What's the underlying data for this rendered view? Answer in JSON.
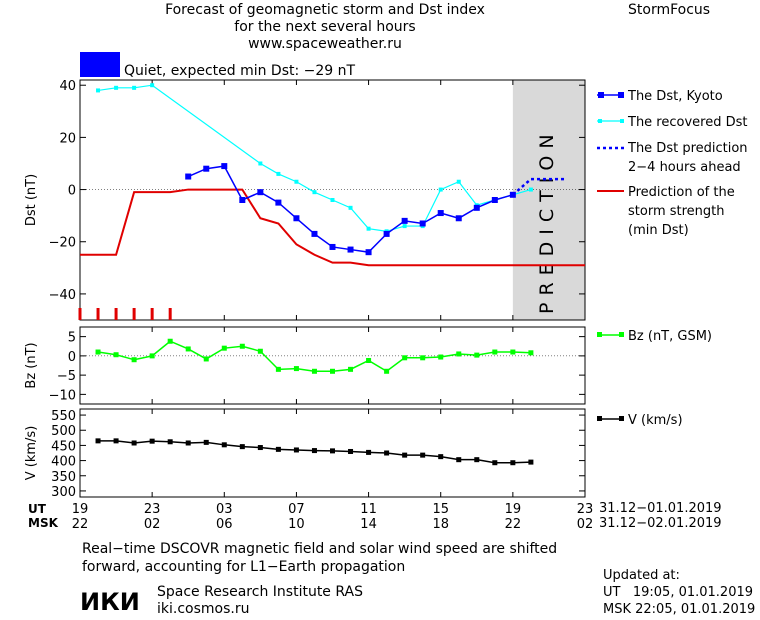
{
  "header": {
    "title_line1": "Forecast of geomagnetic storm and Dst index",
    "title_line2": "for the next several hours",
    "title_line3": "www.spaceweather.ru",
    "brand": "StormFocus"
  },
  "status": {
    "color": "#0000ff",
    "text": "Quiet, expected min Dst: −29 nT"
  },
  "prediction_label": "PREDICTION",
  "colors": {
    "dst_kyoto": "#0000ff",
    "dst_recovered": "#00ffff",
    "dst_prediction": "#0000ff",
    "storm_strength": "#e00000",
    "bz": "#00ff00",
    "v": "#000000",
    "prediction_zone": "#d9d9d9"
  },
  "time_axis": {
    "ut_label": "UT",
    "msk_label": "MSK",
    "ut_ticks": [
      "19",
      "23",
      "03",
      "07",
      "11",
      "15",
      "19",
      "23"
    ],
    "msk_ticks": [
      "22",
      "02",
      "06",
      "10",
      "14",
      "18",
      "22",
      "02"
    ],
    "ut_range": "31.12−01.01.2019",
    "msk_range": "31.12−02.01.2019"
  },
  "chart_data": [
    {
      "type": "line",
      "ylabel": "Dst (nT)",
      "ylim": [
        -50,
        42
      ],
      "xlim": [
        19,
        47
      ],
      "yticks": [
        "40",
        "20",
        "0",
        "−20",
        "−40"
      ],
      "ytick_values": [
        40,
        20,
        0,
        -20,
        -40
      ],
      "legend_placement": "right",
      "series": [
        {
          "name": "The Dst, Kyoto",
          "x": [
            25,
            26,
            27,
            28,
            29,
            30,
            31,
            32,
            33,
            34,
            35,
            36,
            37,
            38,
            39,
            40,
            41,
            42,
            43
          ],
          "values": [
            5,
            8,
            9,
            -4,
            -1,
            -5,
            -11,
            -17,
            -22,
            -23,
            -24,
            -17,
            -12,
            -13,
            -9,
            -11,
            -7,
            -4,
            -2
          ]
        },
        {
          "name": "The recovered Dst",
          "x": [
            20,
            21,
            22,
            23,
            29,
            30,
            31,
            32,
            33,
            34,
            35,
            36,
            37,
            38,
            39,
            40,
            41,
            42,
            43,
            44
          ],
          "values": [
            38,
            39,
            39,
            40,
            10,
            6,
            3,
            -1,
            -4,
            -7,
            -15,
            -16,
            -14,
            -14,
            0,
            3,
            -6,
            -4,
            -2,
            0
          ]
        },
        {
          "name": "The Dst prediction\n2−4 hours ahead",
          "x": [
            43,
            44,
            45,
            46
          ],
          "values": [
            -2,
            4,
            4,
            4
          ]
        },
        {
          "name": "Prediction of the\nstorm strength\n(min Dst)",
          "x": [
            19,
            21,
            22,
            24,
            25,
            26,
            27,
            28,
            29,
            30,
            31,
            32,
            33,
            34,
            35,
            36,
            37,
            47
          ],
          "values": [
            -25,
            -25,
            -1,
            -1,
            0,
            0,
            0,
            0,
            -11,
            -13,
            -21,
            -25,
            -28,
            -28,
            -29,
            -29,
            -29,
            -29
          ]
        }
      ],
      "storm_markers_x": [
        19,
        20,
        21,
        22,
        23,
        24
      ],
      "prediction_zone_x": [
        43,
        47
      ]
    },
    {
      "type": "line",
      "ylabel": "Bz (nT)",
      "ylim": [
        -12.5,
        7.5
      ],
      "xlim": [
        19,
        47
      ],
      "yticks": [
        "5",
        "0",
        "−5",
        "−10"
      ],
      "ytick_values": [
        5,
        0,
        -5,
        -10
      ],
      "series": [
        {
          "name": "Bz (nT, GSM)",
          "x": [
            20,
            21,
            22,
            23,
            24,
            25,
            26,
            27,
            28,
            29,
            30,
            31,
            32,
            33,
            34,
            35,
            36,
            37,
            38,
            39,
            40,
            41,
            42,
            43,
            44
          ],
          "values": [
            1,
            0.3,
            -1,
            0,
            3.8,
            1.8,
            -0.8,
            2,
            2.5,
            1.2,
            -3.5,
            -3.3,
            -4,
            -4,
            -3.5,
            -1.2,
            -4,
            -0.5,
            -0.5,
            -0.3,
            0.5,
            0.2,
            1,
            1,
            0.8
          ]
        }
      ]
    },
    {
      "type": "line",
      "ylabel": "V (km/s)",
      "ylim": [
        280,
        570
      ],
      "xlim": [
        19,
        47
      ],
      "yticks": [
        "550",
        "500",
        "450",
        "400",
        "350",
        "300"
      ],
      "ytick_values": [
        550,
        500,
        450,
        400,
        350,
        300
      ],
      "series": [
        {
          "name": "V (km/s)",
          "x": [
            20,
            21,
            22,
            23,
            24,
            25,
            26,
            27,
            28,
            29,
            30,
            31,
            32,
            33,
            34,
            35,
            36,
            37,
            38,
            39,
            40,
            41,
            42,
            43,
            44
          ],
          "values": [
            465,
            465,
            458,
            464,
            462,
            458,
            460,
            452,
            446,
            443,
            437,
            435,
            433,
            432,
            430,
            427,
            425,
            418,
            418,
            413,
            403,
            403,
            393,
            393,
            395
          ]
        }
      ]
    }
  ],
  "footer": {
    "note_line1": "Real−time DSCOVR magnetic field and solar wind speed are shifted",
    "note_line2": "forward, accounting for L1−Earth propagation",
    "logo_text": "ИКИ",
    "institute": "Space Research Institute RAS",
    "site": "iki.cosmos.ru",
    "updated_label": "Updated at:",
    "updated_ut": "UT   19:05, 01.01.2019",
    "updated_msk": "MSK 22:05, 01.01.2019"
  }
}
